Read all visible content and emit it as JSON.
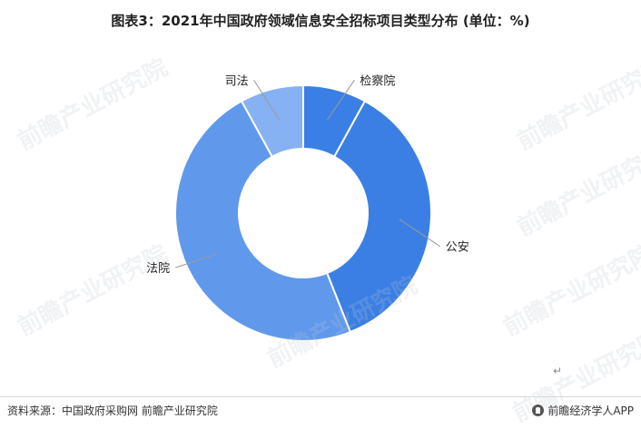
{
  "title": "图表3：2021年中国政府领域信息安全招标项目类型分布 (单位：%)",
  "footer": {
    "source": "资料来源：中国政府采购网 前瞻产业研究院",
    "brand": "前瞻经济学人APP"
  },
  "watermark": "前瞻产业研究院",
  "colors": {
    "检察院": "#3a7fe6",
    "公安": "#3b7fe4",
    "法院": "#6099ec",
    "司法": "#86b1f2",
    "separator": "#ffffff",
    "leader": "#9a9a9a"
  },
  "chart_data": {
    "type": "pie",
    "donut": true,
    "title": "图表3：2021年中国政府领域信息安全招标项目类型分布 (单位：%)",
    "categories": [
      "检察院",
      "公安",
      "法院",
      "司法"
    ],
    "values": [
      8,
      36,
      48,
      8
    ],
    "unit": "%",
    "labels_shown": true,
    "values_shown": false,
    "legend": "none"
  }
}
